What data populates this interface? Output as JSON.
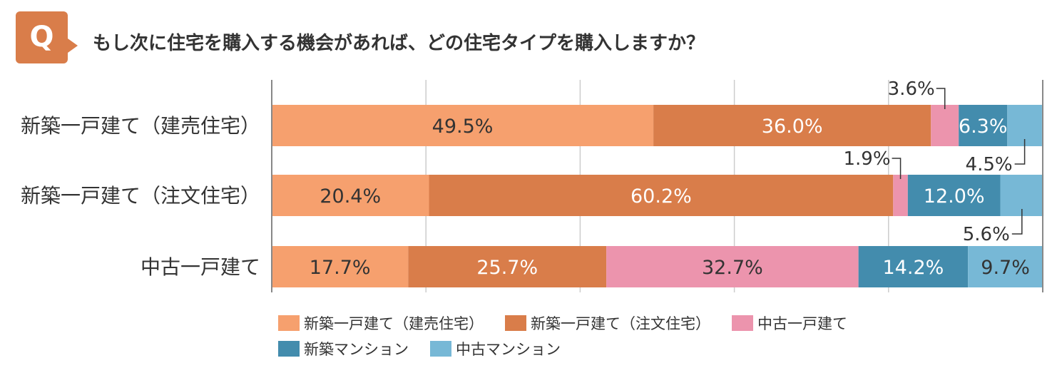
{
  "question": {
    "badge": "Q",
    "title": "もし次に住宅を購入する機会があれば、どの住宅タイプを購入しますか？"
  },
  "chart_data": {
    "type": "bar",
    "orientation": "horizontal",
    "stacked": "percent",
    "title": "",
    "xlim": [
      0,
      100
    ],
    "grid": true,
    "legend_position": "bottom",
    "categories": [
      "新築一戸建て（建売住宅）",
      "新築一戸建て（注文住宅）",
      "中古一戸建て"
    ],
    "series": [
      {
        "name": "新築一戸建て（建売住宅）",
        "color": "#F6A06E",
        "label_color": "#333333",
        "values": [
          49.5,
          20.4,
          17.7
        ]
      },
      {
        "name": "新築一戸建て（注文住宅）",
        "color": "#D97D4A",
        "label_color": "#ffffff",
        "values": [
          36.0,
          60.2,
          25.7
        ]
      },
      {
        "name": "中古一戸建て",
        "color": "#EC94AD",
        "label_color": "#333333",
        "values": [
          3.6,
          1.9,
          32.7
        ]
      },
      {
        "name": "新築マンション",
        "color": "#438CAD",
        "label_color": "#ffffff",
        "values": [
          6.3,
          12.0,
          14.2
        ]
      },
      {
        "name": "中古マンション",
        "color": "#77B8D6",
        "label_color": "#333333",
        "values": [
          4.5,
          5.6,
          9.7
        ]
      }
    ]
  }
}
